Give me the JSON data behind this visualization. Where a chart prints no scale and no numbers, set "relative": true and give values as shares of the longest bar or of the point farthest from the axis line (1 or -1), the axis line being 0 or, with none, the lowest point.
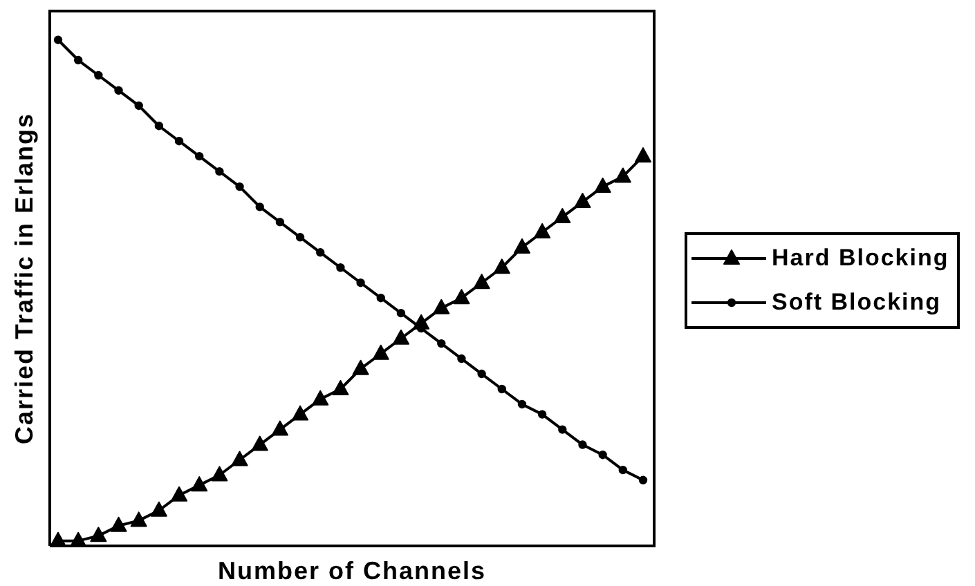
{
  "chart_data": {
    "type": "line",
    "xlabel": "Number of Channels",
    "ylabel": "Carried Traffic in Erlangs",
    "relative": true,
    "legend": "right",
    "categories": [
      null,
      null,
      null,
      null,
      null,
      null,
      null,
      null,
      null,
      null,
      null,
      null,
      null,
      null,
      null,
      null,
      null,
      null,
      null,
      null,
      null,
      null,
      null,
      null,
      null,
      null,
      null,
      null,
      null,
      null
    ],
    "series": [
      {
        "name": "Hard Blocking",
        "color": "#000000",
        "marker": "triangle",
        "values": [
          0.01,
          0.01,
          0.02,
          0.04,
          0.05,
          0.07,
          0.1,
          0.12,
          0.14,
          0.17,
          0.2,
          0.23,
          0.26,
          0.29,
          0.31,
          0.35,
          0.38,
          0.41,
          0.44,
          0.47,
          0.49,
          0.52,
          0.55,
          0.59,
          0.62,
          0.65,
          0.68,
          0.71,
          0.73,
          0.77
        ]
      },
      {
        "name": "Soft Blocking",
        "color": "#000000",
        "marker": "circle",
        "values": [
          1,
          0.96,
          0.93,
          0.9,
          0.87,
          0.83,
          0.8,
          0.77,
          0.74,
          0.71,
          0.67,
          0.64,
          0.61,
          0.58,
          0.55,
          0.52,
          0.49,
          0.46,
          0.43,
          0.4,
          0.37,
          0.34,
          0.31,
          0.28,
          0.26,
          0.23,
          0.2,
          0.18,
          0.15,
          0.13
        ]
      }
    ]
  }
}
